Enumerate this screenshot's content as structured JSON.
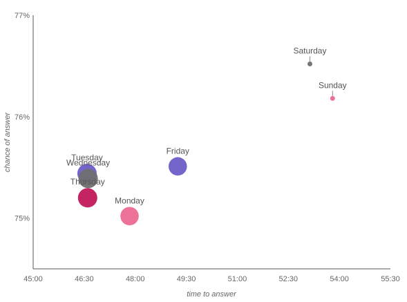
{
  "chart_data": {
    "type": "scatter",
    "title": "",
    "xlabel": "time to answer",
    "ylabel": "chance of answer",
    "x_unit": "mm:ss",
    "y_unit": "%",
    "xlim": [
      "45:00",
      "55:30"
    ],
    "ylim": [
      74.5,
      77
    ],
    "xticks": [
      "45:00",
      "46:30",
      "48:00",
      "49:30",
      "51:00",
      "52:30",
      "54:00",
      "55:30"
    ],
    "yticks": [
      "75%",
      "76%",
      "77%"
    ],
    "grid": false,
    "legend": "none",
    "size_encodes": "relative bubble size (no scale shown)",
    "points": [
      {
        "label": "Tuesday",
        "x": "46:35",
        "y": 75.44,
        "size": 1.0,
        "color": "#6a5ec8"
      },
      {
        "label": "Wednesday",
        "x": "46:37",
        "y": 75.39,
        "size": 1.0,
        "color": "#6f6f6f"
      },
      {
        "label": "Thursday",
        "x": "46:36",
        "y": 75.2,
        "size": 1.0,
        "color": "#c2185b"
      },
      {
        "label": "Monday",
        "x": "47:50",
        "y": 75.02,
        "size": 0.95,
        "color": "#ec6a92"
      },
      {
        "label": "Friday",
        "x": "49:15",
        "y": 75.51,
        "size": 0.95,
        "color": "#6a5ec8"
      },
      {
        "label": "Saturday",
        "x": "53:08",
        "y": 76.52,
        "size": 0.25,
        "color": "#6f6f6f"
      },
      {
        "label": "Sunday",
        "x": "53:48",
        "y": 76.18,
        "size": 0.25,
        "color": "#ec6a92"
      }
    ]
  }
}
